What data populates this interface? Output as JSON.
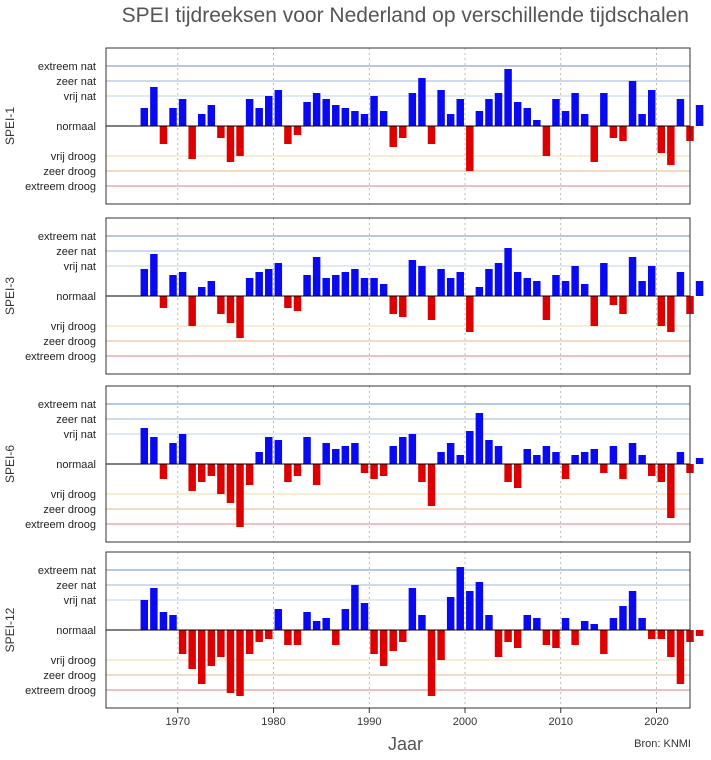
{
  "title": "SPEI tijdreeksen voor Nederland op verschillende tijdschalen",
  "source": "Bron: KNMI",
  "colors": {
    "positive": "#0a0af0",
    "negative": "#dd0000",
    "zero_line": "#000000",
    "line_extreem_nat": "#6f8fcf",
    "line_zeer_nat": "#9fb5dd",
    "line_vrij_nat": "#c6d3ec",
    "line_vrij_droog": "#f2d9a6",
    "line_zeer_droog": "#efb585",
    "line_extreem_droog": "#e08080",
    "vgrid": "#aaaaaa",
    "frame": "#333333"
  },
  "chart_data": {
    "type": "bar",
    "title": "SPEI tijdreeksen voor Nederland op verschillende tijdschalen",
    "xlabel": "Jaar",
    "xlim": [
      1962.5,
      2023.5
    ],
    "ylim": [
      -2.6,
      2.6
    ],
    "xticks": [
      1970,
      1980,
      1990,
      2000,
      2010,
      2020
    ],
    "levels": [
      {
        "label": "extreem nat",
        "value": 2.0,
        "color_key": "line_extreem_nat"
      },
      {
        "label": "zeer nat",
        "value": 1.5,
        "color_key": "line_zeer_nat"
      },
      {
        "label": "vrij nat",
        "value": 1.0,
        "color_key": "line_vrij_nat"
      },
      {
        "label": "normaal",
        "value": 0.0,
        "color_key": "zero_line"
      },
      {
        "label": "vrij droog",
        "value": -1.0,
        "color_key": "line_vrij_droog"
      },
      {
        "label": "zeer droog",
        "value": -1.5,
        "color_key": "line_zeer_droog"
      },
      {
        "label": "extreem droog",
        "value": -2.0,
        "color_key": "line_extreem_droog"
      }
    ],
    "panels": [
      {
        "ylabel": "SPEI-1",
        "start": 1966.0,
        "step": 1.0,
        "values": [
          0.6,
          1.3,
          -0.6,
          0.6,
          0.9,
          -1.1,
          0.4,
          0.7,
          -0.4,
          -1.2,
          -1.0,
          0.9,
          0.6,
          1.0,
          1.2,
          -0.6,
          -0.3,
          0.8,
          1.1,
          0.9,
          0.7,
          0.6,
          0.5,
          0.4,
          1.0,
          0.5,
          -0.7,
          -0.4,
          1.1,
          1.6,
          -0.6,
          1.2,
          0.4,
          0.9,
          -1.5,
          0.5,
          0.9,
          1.1,
          1.9,
          0.8,
          0.6,
          0.2,
          -1.0,
          0.9,
          0.5,
          1.1,
          0.4,
          -1.2,
          1.1,
          -0.4,
          -0.5,
          1.5,
          0.4,
          1.2,
          -0.9,
          -1.3,
          0.9,
          -0.5,
          0.7
        ]
      },
      {
        "ylabel": "SPEI-3",
        "start": 1966.0,
        "step": 1.0,
        "values": [
          0.9,
          1.4,
          -0.4,
          0.7,
          0.8,
          -1.0,
          0.3,
          0.5,
          -0.6,
          -0.9,
          -1.4,
          0.6,
          0.8,
          0.9,
          1.1,
          -0.4,
          -0.5,
          0.7,
          1.3,
          0.6,
          0.7,
          0.8,
          0.9,
          0.6,
          0.6,
          0.4,
          -0.6,
          -0.7,
          1.2,
          1.0,
          -0.8,
          0.9,
          0.6,
          0.8,
          -1.2,
          0.3,
          0.9,
          1.1,
          1.6,
          0.8,
          0.6,
          0.5,
          -0.8,
          0.7,
          0.5,
          1.0,
          0.4,
          -1.0,
          1.1,
          -0.3,
          -0.6,
          1.3,
          0.5,
          1.0,
          -1.0,
          -1.2,
          0.8,
          -0.6,
          0.5
        ]
      },
      {
        "ylabel": "SPEI-6",
        "start": 1966.0,
        "step": 1.0,
        "values": [
          1.2,
          0.9,
          -0.5,
          0.7,
          1.0,
          -0.9,
          -0.6,
          -0.4,
          -1.0,
          -1.3,
          -2.1,
          -0.7,
          0.4,
          0.9,
          0.8,
          -0.6,
          -0.4,
          0.9,
          -0.7,
          0.7,
          0.5,
          0.6,
          0.7,
          -0.3,
          -0.5,
          -0.4,
          0.6,
          0.9,
          1.0,
          -0.6,
          -1.4,
          0.4,
          0.7,
          0.3,
          1.1,
          1.7,
          0.8,
          0.6,
          -0.6,
          -0.8,
          0.5,
          0.3,
          0.6,
          0.4,
          -0.5,
          0.3,
          0.4,
          0.5,
          -0.3,
          0.6,
          -0.5,
          0.7,
          0.3,
          -0.4,
          -0.6,
          -1.8,
          0.4,
          -0.3,
          0.2
        ]
      },
      {
        "ylabel": "SPEI-12",
        "start": 1966.0,
        "step": 1.0,
        "values": [
          1.0,
          1.4,
          0.6,
          0.5,
          -0.8,
          -1.3,
          -1.8,
          -1.2,
          -0.9,
          -2.1,
          -2.2,
          -0.8,
          -0.4,
          -0.3,
          0.7,
          -0.5,
          -0.5,
          0.6,
          0.3,
          0.4,
          -0.5,
          0.7,
          1.5,
          0.9,
          -0.8,
          -1.2,
          -0.7,
          -0.4,
          1.4,
          0.5,
          -2.2,
          -1.0,
          1.1,
          2.1,
          1.3,
          1.6,
          0.5,
          -0.9,
          -0.4,
          -0.6,
          0.5,
          0.4,
          -0.5,
          -0.6,
          0.4,
          -0.5,
          0.3,
          0.2,
          -0.8,
          0.4,
          0.8,
          1.3,
          0.4,
          -0.3,
          -0.3,
          -0.9,
          -1.8,
          -0.4,
          -0.2
        ]
      }
    ]
  }
}
